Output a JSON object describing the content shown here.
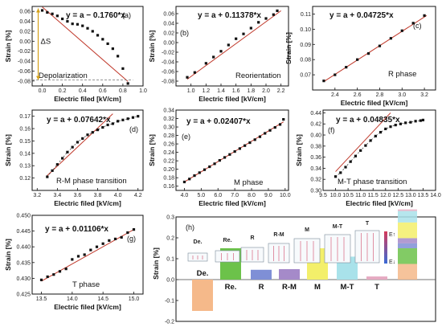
{
  "chart_data": [
    {
      "id": "a",
      "type": "scatter",
      "panel_label": "(a)",
      "equation": "y = a − 0.1760*x",
      "annotation": "Depolarization",
      "delta_label": "ΔS",
      "xlabel": "Electric filed [kV/cm]",
      "ylabel": "Strain [%]",
      "xlim": [
        -0.1,
        1.0
      ],
      "ylim": [
        -0.09,
        0.07
      ],
      "xticks": [
        "0.0",
        "0.2",
        "0.4",
        "0.6",
        "0.8",
        "1.0"
      ],
      "yticks": [
        "-0.08",
        "-0.06",
        "-0.04",
        "-0.02",
        "0.00",
        "0.02",
        "0.04",
        "0.06"
      ],
      "x": [
        0.0,
        0.05,
        0.1,
        0.15,
        0.2,
        0.25,
        0.3,
        0.35,
        0.4,
        0.45,
        0.5,
        0.55,
        0.6,
        0.65,
        0.7,
        0.75,
        0.8,
        0.85
      ],
      "y": [
        0.062,
        0.058,
        0.055,
        0.051,
        0.045,
        0.04,
        0.035,
        0.034,
        0.031,
        0.026,
        0.02,
        0.012,
        0.004,
        -0.005,
        -0.015,
        -0.03,
        -0.055,
        -0.085
      ],
      "fit": [
        [
          0.0,
          0.069
        ],
        [
          0.85,
          -0.081
        ]
      ]
    },
    {
      "id": "b",
      "type": "scatter",
      "panel_label": "(b)",
      "equation": "y = a + 0.11378*x",
      "annotation": "Reorientation",
      "xlabel": "Electric filed [kV/cm]",
      "ylabel": "Strain [%]",
      "xlim": [
        0.8,
        2.3
      ],
      "ylim": [
        -0.09,
        0.075
      ],
      "xticks": [
        "1.0",
        "1.2",
        "1.4",
        "1.6",
        "1.8",
        "2.0",
        "2.2"
      ],
      "yticks": [
        "-0.08",
        "-0.06",
        "-0.04",
        "-0.02",
        "0.00",
        "0.02",
        "0.04",
        "0.06"
      ],
      "x": [
        0.95,
        1.05,
        1.2,
        1.3,
        1.4,
        1.5,
        1.6,
        1.7,
        1.8,
        1.9,
        2.0,
        2.1,
        2.15
      ],
      "y": [
        -0.072,
        -0.062,
        -0.043,
        -0.03,
        -0.018,
        -0.005,
        0.008,
        0.018,
        0.03,
        0.042,
        0.05,
        0.058,
        0.066
      ],
      "fit": [
        [
          0.95,
          -0.076
        ],
        [
          2.2,
          0.066
        ]
      ]
    },
    {
      "id": "c",
      "type": "scatter",
      "panel_label": "(c)",
      "equation": "y = a + 0.04725*x",
      "annotation": "R phase",
      "xlabel": "Electric filed [kV/cm]",
      "ylabel": "Strain [%]",
      "xlim": [
        2.2,
        3.3
      ],
      "ylim": [
        0.06,
        0.115
      ],
      "xticks": [
        "2.4",
        "2.6",
        "2.8",
        "3.0",
        "3.2"
      ],
      "yticks": [
        "0.07",
        "0.08",
        "0.09",
        "0.10",
        "0.11"
      ],
      "x": [
        2.3,
        2.4,
        2.5,
        2.6,
        2.7,
        2.8,
        2.9,
        3.0,
        3.1,
        3.2
      ],
      "y": [
        0.066,
        0.07,
        0.075,
        0.08,
        0.084,
        0.089,
        0.094,
        0.099,
        0.104,
        0.109
      ],
      "fit": [
        [
          2.3,
          0.0655
        ],
        [
          3.22,
          0.109
        ]
      ]
    },
    {
      "id": "d",
      "type": "scatter",
      "panel_label": "(d)",
      "equation": "y = a + 0.07642*x",
      "annotation": "R-M phase transition",
      "xlabel": "Electric filed [kV/cm]",
      "ylabel": "Strain [%]",
      "xlim": [
        3.15,
        4.25
      ],
      "ylim": [
        0.11,
        0.175
      ],
      "xticks": [
        "3.2",
        "3.4",
        "3.6",
        "3.8",
        "4.0",
        "4.2"
      ],
      "yticks": [
        "0.12",
        "0.13",
        "0.14",
        "0.15",
        "0.16",
        "0.17"
      ],
      "x": [
        3.3,
        3.35,
        3.4,
        3.45,
        3.5,
        3.55,
        3.6,
        3.65,
        3.7,
        3.75,
        3.8,
        3.85,
        3.9,
        3.95,
        4.0,
        4.05,
        4.1,
        4.15,
        4.2
      ],
      "y": [
        0.121,
        0.126,
        0.131,
        0.136,
        0.141,
        0.145,
        0.149,
        0.152,
        0.155,
        0.157,
        0.159,
        0.161,
        0.163,
        0.164,
        0.166,
        0.167,
        0.168,
        0.169,
        0.17
      ],
      "fit": [
        [
          3.3,
          0.122
        ],
        [
          3.95,
          0.172
        ]
      ]
    },
    {
      "id": "e",
      "type": "scatter",
      "panel_label": "(e)",
      "equation": "y = a + 0.02407*x",
      "annotation": "M phase",
      "xlabel": "Electric filed [kV/cm]",
      "ylabel": "Strain [%]",
      "xlim": [
        3.5,
        10.2
      ],
      "ylim": [
        0.15,
        0.34
      ],
      "xticks": [
        "4.0",
        "5.0",
        "6.0",
        "7.0",
        "8.0",
        "9.0",
        "10.0"
      ],
      "yticks": [
        "0.16",
        "0.18",
        "0.20",
        "0.22",
        "0.24",
        "0.26",
        "0.28",
        "0.30",
        "0.32",
        "0.34"
      ],
      "x": [
        4.0,
        4.3,
        4.6,
        4.9,
        5.2,
        5.5,
        5.8,
        6.1,
        6.4,
        6.7,
        7.0,
        7.3,
        7.6,
        7.9,
        8.2,
        8.5,
        8.8,
        9.1,
        9.4,
        9.7,
        9.9
      ],
      "y": [
        0.17,
        0.177,
        0.185,
        0.192,
        0.199,
        0.206,
        0.213,
        0.221,
        0.228,
        0.235,
        0.242,
        0.249,
        0.256,
        0.263,
        0.27,
        0.277,
        0.285,
        0.292,
        0.299,
        0.306,
        0.318
      ],
      "fit": [
        [
          4.0,
          0.17
        ],
        [
          9.9,
          0.312
        ]
      ]
    },
    {
      "id": "f",
      "type": "scatter",
      "panel_label": "(f)",
      "equation": "y = a + 0.04835*x",
      "annotation": "M-T phase transition",
      "xlabel": "Electric filed [kV/cm]",
      "ylabel": "Strain [%]",
      "xlim": [
        9.5,
        14.0
      ],
      "ylim": [
        0.3,
        0.445
      ],
      "xticks": [
        "9.5",
        "10.0",
        "10.5",
        "11.0",
        "11.5",
        "12.0",
        "12.5",
        "13.0",
        "13.5",
        "14.0"
      ],
      "yticks": [
        "0.30",
        "0.32",
        "0.34",
        "0.36",
        "0.38",
        "0.40",
        "0.42",
        "0.44"
      ],
      "x": [
        10.0,
        10.2,
        10.4,
        10.6,
        10.8,
        11.0,
        11.2,
        11.4,
        11.6,
        11.8,
        12.0,
        12.2,
        12.4,
        12.6,
        12.8,
        13.0,
        13.2,
        13.4,
        13.5
      ],
      "y": [
        0.325,
        0.332,
        0.342,
        0.352,
        0.362,
        0.372,
        0.381,
        0.39,
        0.398,
        0.405,
        0.411,
        0.415,
        0.418,
        0.42,
        0.422,
        0.423,
        0.425,
        0.426,
        0.427
      ],
      "fit": [
        [
          10.0,
          0.334
        ],
        [
          12.2,
          0.44
        ]
      ]
    },
    {
      "id": "g",
      "type": "scatter",
      "panel_label": "(g)",
      "equation": "y = a + 0.01106*x",
      "annotation": "T phase",
      "xlabel": "Electric filed [kV/cm]",
      "ylabel": "Strain [%]",
      "xlim": [
        13.35,
        15.15
      ],
      "ylim": [
        0.425,
        0.45
      ],
      "xticks": [
        "13.5",
        "14.0",
        "14.5",
        "15.0"
      ],
      "yticks": [
        "0.425",
        "0.430",
        "0.435",
        "0.440",
        "0.445",
        "0.450"
      ],
      "x": [
        13.5,
        13.6,
        13.7,
        13.8,
        13.9,
        14.0,
        14.1,
        14.2,
        14.3,
        14.4,
        14.5,
        14.6,
        14.7,
        14.8,
        14.9,
        15.0
      ],
      "y": [
        0.4295,
        0.4305,
        0.4312,
        0.4322,
        0.433,
        0.436,
        0.437,
        0.4375,
        0.439,
        0.44,
        0.441,
        0.442,
        0.4425,
        0.443,
        0.4445,
        0.4455
      ],
      "fit": [
        [
          13.5,
          0.4291
        ],
        [
          15.0,
          0.4455
        ]
      ]
    },
    {
      "id": "h",
      "type": "bar",
      "panel_label": "(h)",
      "ylabel": "Strain [%]",
      "ylim": [
        -0.2,
        0.3
      ],
      "yticks": [
        "-0.2",
        "-0.1",
        "0.0",
        "0.1",
        "0.2",
        "0.3"
      ],
      "categories": [
        "De.",
        "Re.",
        "R",
        "R-M",
        "M",
        "M-T",
        "T"
      ],
      "values": [
        -0.15,
        0.15,
        0.047,
        0.05,
        0.15,
        0.11,
        0.015
      ],
      "colors": [
        "#f5b98a",
        "#6cc24a",
        "#7f8fd6",
        "#a58ac9",
        "#f3ef6a",
        "#a9e2ea",
        "#e6aac2"
      ],
      "illustration_labels": [
        "De.",
        "Re.",
        "R",
        "R-M",
        "M",
        "M-T",
        "T"
      ],
      "stacked_total": {
        "segments": [
          {
            "name": "De.",
            "value": 0.15,
            "color": "#f5b98a"
          },
          {
            "name": "Re.",
            "value": 0.15,
            "color": "#6cc24a"
          },
          {
            "name": "R",
            "value": 0.047,
            "color": "#7f8fd6"
          },
          {
            "name": "R-M",
            "value": 0.05,
            "color": "#a58ac9"
          },
          {
            "name": "M",
            "value": 0.15,
            "color": "#f3ef6a"
          },
          {
            "name": "M-T",
            "value": 0.11,
            "color": "#a9e2ea"
          },
          {
            "name": "T",
            "value": 0.015,
            "color": "#e6aac2"
          }
        ],
        "baseline": 0.0
      },
      "colorbar_ticks": [
        "E↑",
        "E↓"
      ]
    }
  ]
}
